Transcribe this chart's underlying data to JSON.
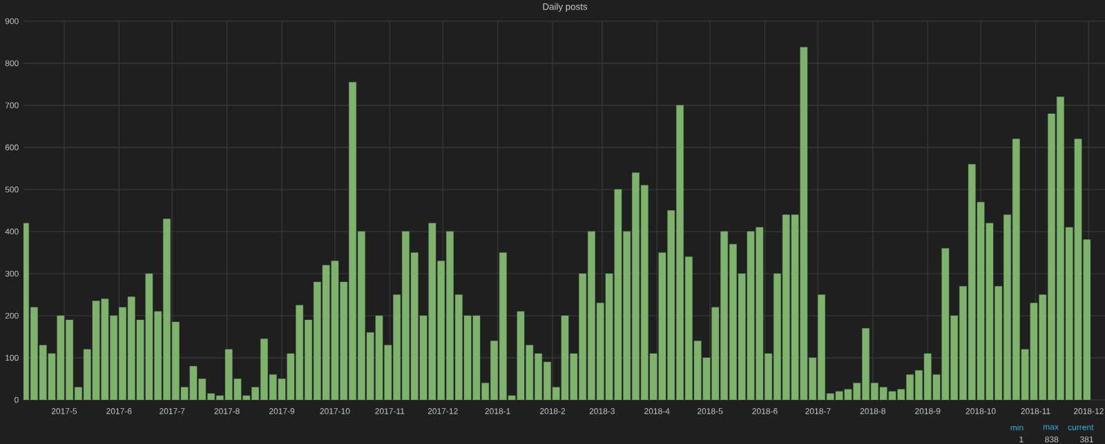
{
  "chart_data": {
    "type": "bar",
    "title": "Daily posts",
    "x": [
      "2017-04-09",
      "2017-04-14",
      "2017-04-19",
      "2017-04-24",
      "2017-04-29",
      "2017-05-04",
      "2017-05-09",
      "2017-05-14",
      "2017-05-19",
      "2017-05-24",
      "2017-05-29",
      "2017-06-03",
      "2017-06-08",
      "2017-06-13",
      "2017-06-18",
      "2017-06-23",
      "2017-06-28",
      "2017-07-03",
      "2017-07-08",
      "2017-07-13",
      "2017-07-18",
      "2017-07-23",
      "2017-07-28",
      "2017-08-02",
      "2017-08-07",
      "2017-08-12",
      "2017-08-17",
      "2017-08-22",
      "2017-08-27",
      "2017-09-01",
      "2017-09-06",
      "2017-09-11",
      "2017-09-16",
      "2017-09-21",
      "2017-09-26",
      "2017-10-01",
      "2017-10-06",
      "2017-10-11",
      "2017-10-16",
      "2017-10-21",
      "2017-10-26",
      "2017-10-31",
      "2017-11-05",
      "2017-11-10",
      "2017-11-15",
      "2017-11-20",
      "2017-11-25",
      "2017-11-30",
      "2017-12-05",
      "2017-12-10",
      "2017-12-15",
      "2017-12-20",
      "2017-12-25",
      "2017-12-30",
      "2018-01-04",
      "2018-01-09",
      "2018-01-14",
      "2018-01-19",
      "2018-01-24",
      "2018-01-29",
      "2018-02-03",
      "2018-02-08",
      "2018-02-13",
      "2018-02-18",
      "2018-02-23",
      "2018-02-28",
      "2018-03-05",
      "2018-03-10",
      "2018-03-15",
      "2018-03-20",
      "2018-03-25",
      "2018-03-30",
      "2018-04-04",
      "2018-04-09",
      "2018-04-14",
      "2018-04-19",
      "2018-04-24",
      "2018-04-29",
      "2018-05-04",
      "2018-05-09",
      "2018-05-14",
      "2018-05-19",
      "2018-05-24",
      "2018-05-29",
      "2018-06-03",
      "2018-06-08",
      "2018-06-13",
      "2018-06-18",
      "2018-06-23",
      "2018-06-28",
      "2018-07-03",
      "2018-07-08",
      "2018-07-13",
      "2018-07-18",
      "2018-07-23",
      "2018-07-28",
      "2018-08-02",
      "2018-08-07",
      "2018-08-12",
      "2018-08-17",
      "2018-08-22",
      "2018-08-27",
      "2018-09-01",
      "2018-09-06",
      "2018-09-11",
      "2018-09-16",
      "2018-09-21",
      "2018-09-26",
      "2018-10-01",
      "2018-10-06",
      "2018-10-11",
      "2018-10-16",
      "2018-10-21",
      "2018-10-26",
      "2018-10-31",
      "2018-11-05",
      "2018-11-10",
      "2018-11-15",
      "2018-11-20",
      "2018-11-25",
      "2018-11-30"
    ],
    "values": [
      420,
      220,
      130,
      110,
      200,
      190,
      30,
      120,
      235,
      240,
      200,
      220,
      245,
      190,
      300,
      210,
      430,
      185,
      30,
      80,
      50,
      15,
      10,
      120,
      50,
      10,
      30,
      145,
      60,
      50,
      110,
      225,
      190,
      280,
      320,
      330,
      280,
      755,
      400,
      160,
      200,
      130,
      250,
      400,
      350,
      200,
      420,
      330,
      400,
      250,
      200,
      200,
      40,
      140,
      350,
      10,
      210,
      130,
      110,
      90,
      30,
      200,
      110,
      300,
      400,
      230,
      300,
      500,
      400,
      540,
      510,
      110,
      350,
      450,
      700,
      340,
      140,
      100,
      220,
      400,
      370,
      300,
      400,
      410,
      110,
      300,
      440,
      440,
      838,
      100,
      250,
      15,
      20,
      25,
      40,
      170,
      40,
      30,
      20,
      25,
      60,
      70,
      110,
      60,
      360,
      200,
      270,
      560,
      470,
      420,
      270,
      440,
      620,
      120,
      230,
      250,
      680,
      720,
      410,
      620,
      381
    ],
    "color": "#7eb26d",
    "xlim": [
      "2017-04-08",
      "2018-12-11"
    ],
    "xticks": [
      {
        "value": "2017-05-01",
        "label": "2017-5"
      },
      {
        "value": "2017-06-01",
        "label": "2017-6"
      },
      {
        "value": "2017-07-01",
        "label": "2017-7"
      },
      {
        "value": "2017-08-01",
        "label": "2017-8"
      },
      {
        "value": "2017-09-01",
        "label": "2017-9"
      },
      {
        "value": "2017-10-01",
        "label": "2017-10"
      },
      {
        "value": "2017-11-01",
        "label": "2017-11"
      },
      {
        "value": "2017-12-01",
        "label": "2017-12"
      },
      {
        "value": "2018-01-01",
        "label": "2018-1"
      },
      {
        "value": "2018-02-01",
        "label": "2018-2"
      },
      {
        "value": "2018-03-01",
        "label": "2018-3"
      },
      {
        "value": "2018-04-01",
        "label": "2018-4"
      },
      {
        "value": "2018-05-01",
        "label": "2018-5"
      },
      {
        "value": "2018-06-01",
        "label": "2018-6"
      },
      {
        "value": "2018-07-01",
        "label": "2018-7"
      },
      {
        "value": "2018-08-01",
        "label": "2018-8"
      },
      {
        "value": "2018-09-01",
        "label": "2018-9"
      },
      {
        "value": "2018-10-01",
        "label": "2018-10"
      },
      {
        "value": "2018-11-01",
        "label": "2018-11"
      },
      {
        "value": "2018-12-01",
        "label": "2018-12"
      }
    ],
    "ylim": [
      0,
      900
    ],
    "yticks": [
      0,
      100,
      200,
      300,
      400,
      500,
      600,
      700,
      800,
      900
    ],
    "grid": true,
    "annotations": [
      "min",
      "max",
      "current",
      "1",
      "838",
      "381"
    ]
  }
}
